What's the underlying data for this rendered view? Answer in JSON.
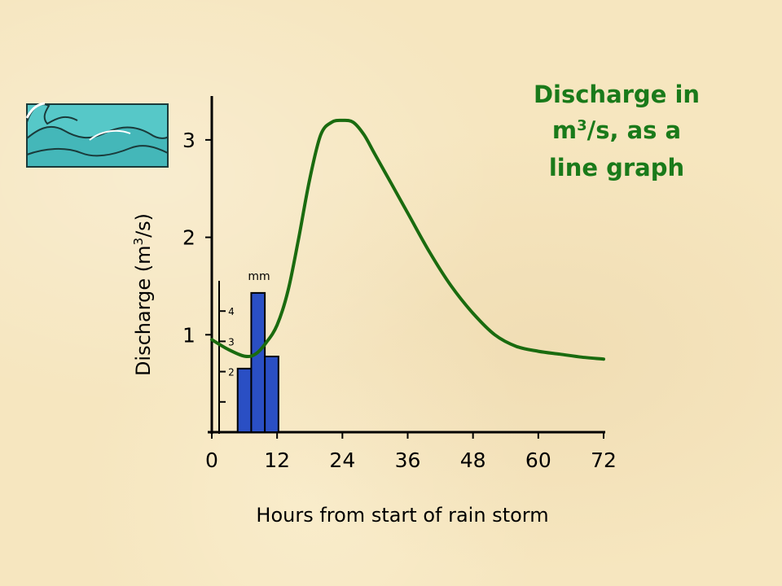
{
  "chart_data": {
    "type": "line",
    "title_lines": [
      "Discharge in",
      "m3/s, as a",
      "line graph"
    ],
    "xlabel": "Hours from start of rain storm",
    "ylabel": "Discharge (m3/s)",
    "xlim": [
      0,
      72
    ],
    "ylim": [
      0,
      3.45
    ],
    "x_ticks": [
      0,
      12,
      24,
      36,
      48,
      60,
      72
    ],
    "y_ticks": [
      1,
      2,
      3
    ],
    "grid": false,
    "line_color": "#1a6b0f",
    "series": [
      {
        "x": [
          0,
          3,
          6,
          8,
          10,
          12,
          14,
          16,
          18,
          20,
          22,
          24,
          26,
          28,
          30,
          33,
          36,
          40,
          44,
          48,
          52,
          56,
          60,
          64,
          68,
          72
        ],
        "y": [
          0.95,
          0.85,
          0.78,
          0.8,
          0.92,
          1.1,
          1.45,
          2.0,
          2.6,
          3.05,
          3.18,
          3.2,
          3.18,
          3.05,
          2.85,
          2.55,
          2.25,
          1.85,
          1.5,
          1.22,
          1.0,
          0.88,
          0.83,
          0.8,
          0.77,
          0.75
        ]
      }
    ],
    "rainfall": {
      "type": "bar",
      "unit": "mm",
      "bar_color": "#2a4fc4",
      "x": [
        6,
        8.5,
        11
      ],
      "values": [
        2.1,
        4.6,
        2.5
      ],
      "ylim": [
        0,
        5.0
      ],
      "y_ticks": [
        1,
        2,
        3,
        4
      ],
      "y_tick_labels": [
        "",
        "2",
        "3",
        "4"
      ]
    }
  },
  "icons": {
    "wave_clipart": "ocean-waves"
  },
  "colors": {
    "background": "#f6e6bf",
    "title": "#1a7a1a",
    "line": "#1a6b0f",
    "bars": "#2a4fc4"
  }
}
